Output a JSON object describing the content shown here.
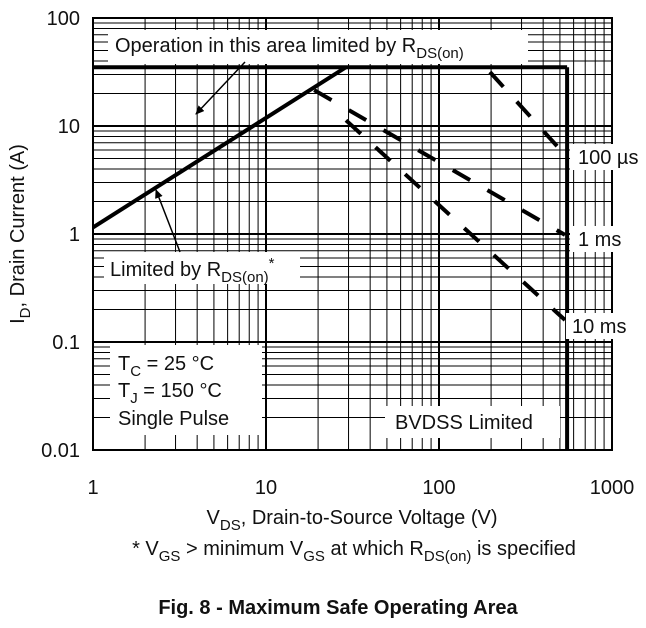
{
  "chart_data": {
    "type": "line",
    "title": "Fig. 8 - Maximum Safe Operating Area",
    "xlabel": [
      {
        "text": "V"
      },
      {
        "sub": "DS"
      },
      {
        "text": ", Drain-to-Source Voltage (V)"
      }
    ],
    "ylabel": [
      {
        "text": "I"
      },
      {
        "sub": "D"
      },
      {
        "text": ", Drain Current (A)"
      }
    ],
    "footnote": [
      {
        "text": "* V"
      },
      {
        "sub": "GS"
      },
      {
        "text": " > minimum V"
      },
      {
        "sub": "GS"
      },
      {
        "text": " at which R"
      },
      {
        "sub": "DS(on)"
      },
      {
        "text": " is specified"
      }
    ],
    "xscale": "log",
    "yscale": "log",
    "grid": true,
    "xlim": [
      1,
      1000
    ],
    "xticks": [
      1,
      10,
      100,
      1000
    ],
    "ylim": [
      0.01,
      100
    ],
    "yticks": [
      0.01,
      0.1,
      1,
      10,
      100
    ],
    "series": [
      {
        "color": "#000000",
        "style": "solid",
        "x": [
          1,
          29
        ],
        "y": [
          1.15,
          35
        ]
      },
      {
        "color": "#000000",
        "style": "solid",
        "x": [
          1,
          550
        ],
        "y": [
          35,
          35
        ]
      },
      {
        "color": "#000000",
        "style": "solid",
        "x": [
          550,
          550
        ],
        "y": [
          35,
          0.01
        ]
      },
      {
        "color": "#000000",
        "style": "dashed",
        "x": [
          197,
          535
        ],
        "y": [
          31.6,
          5.4
        ]
      },
      {
        "color": "#000000",
        "style": "dashed",
        "x": [
          19,
          535
        ],
        "y": [
          21.5,
          0.98
        ]
      },
      {
        "color": "#000000",
        "style": "dashed",
        "x": [
          29,
          535
        ],
        "y": [
          11.3,
          0.16
        ]
      }
    ],
    "annotations": [
      [
        {
          "text": "Operation in this area limited by R"
        },
        {
          "sub": "DS(on)"
        }
      ],
      [
        {
          "text": "Limited by R"
        },
        {
          "sub": "DS(on)"
        },
        {
          "sup": "*"
        }
      ],
      [
        {
          "text": "T"
        },
        {
          "sub": "C"
        },
        {
          "text": " = 25 °C"
        }
      ],
      [
        {
          "text": "T"
        },
        {
          "sub": "J"
        },
        {
          "text": " = 150 °C"
        }
      ],
      [
        {
          "text": "Single Pulse"
        }
      ],
      [
        {
          "text": "BVDSS Limited"
        }
      ],
      [
        {
          "text": "100 µs"
        }
      ],
      [
        {
          "text": "1 ms"
        }
      ],
      [
        {
          "text": "10 ms"
        }
      ]
    ]
  }
}
